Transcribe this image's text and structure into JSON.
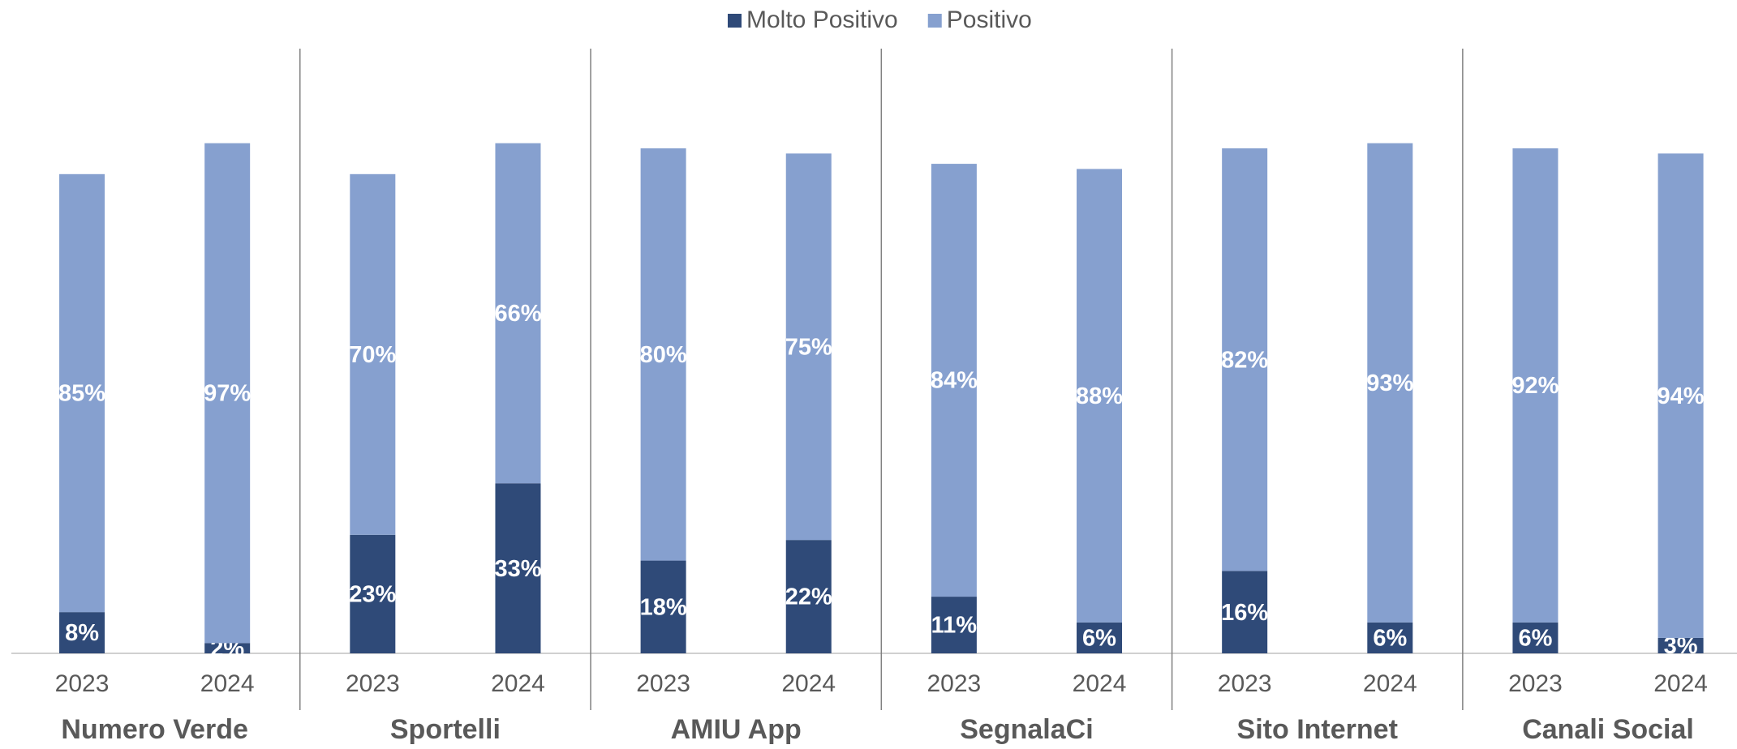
{
  "chart_data": {
    "type": "bar",
    "stacked": true,
    "categories": [
      "2023",
      "2024",
      "2023",
      "2024",
      "2023",
      "2024",
      "2023",
      "2024",
      "2023",
      "2024",
      "2023",
      "2024"
    ],
    "groups": [
      "Numero Verde",
      "Sportelli",
      "AMIU App",
      "SegnalaCi",
      "Sito Internet",
      "Canali Social"
    ],
    "series": [
      {
        "name": "Molto Positivo",
        "color": "#2f4a78",
        "values": [
          8,
          2,
          23,
          33,
          18,
          22,
          11,
          6,
          16,
          6,
          6,
          3
        ],
        "value_labels": [
          "8%",
          "2%",
          "23%",
          "33%",
          "18%",
          "22%",
          "11%",
          "6%",
          "16%",
          "6%",
          "6%",
          "3%"
        ]
      },
      {
        "name": "Positivo",
        "color": "#86a0cf",
        "values": [
          85,
          97,
          70,
          66,
          80,
          75,
          84,
          88,
          82,
          93,
          92,
          94
        ],
        "value_labels": [
          "85%",
          "97%",
          "70%",
          "66%",
          "80%",
          "75%",
          "84%",
          "88%",
          "82%",
          "93%",
          "92%",
          "94%"
        ]
      }
    ],
    "legend": "top"
  }
}
